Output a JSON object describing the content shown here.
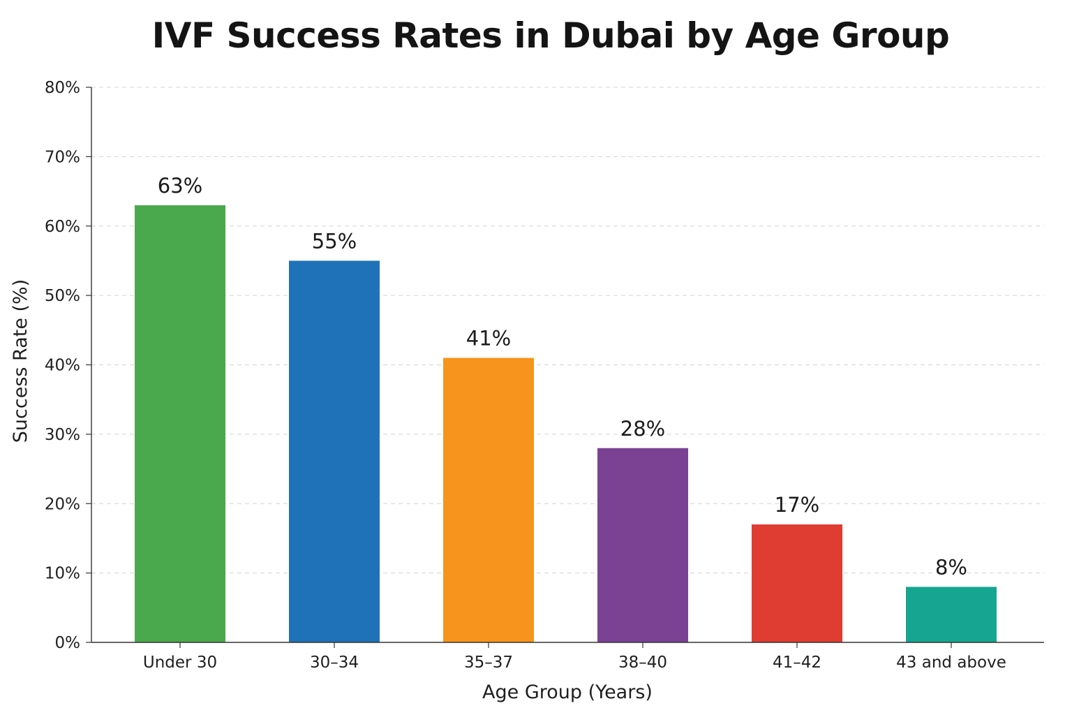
{
  "chart_data": {
    "type": "bar",
    "title": "IVF Success Rates in Dubai by Age Group",
    "xlabel": "Age Group (Years)",
    "ylabel": "Success Rate (%)",
    "categories": [
      "Under 30",
      "30–34",
      "35–37",
      "38–40",
      "41–42",
      "43 and above"
    ],
    "values": [
      63,
      55,
      41,
      28,
      17,
      8
    ],
    "value_labels": [
      "63%",
      "55%",
      "41%",
      "28%",
      "17%",
      "8%"
    ],
    "colors": [
      "#4aa84d",
      "#1f72b8",
      "#f7941d",
      "#7b4294",
      "#df3c32",
      "#16a590"
    ],
    "ylim": [
      0,
      80
    ],
    "yticks": [
      0,
      10,
      20,
      30,
      40,
      50,
      60,
      70,
      80
    ],
    "ytick_labels": [
      "0%",
      "10%",
      "20%",
      "30%",
      "40%",
      "50%",
      "60%",
      "70%",
      "80%"
    ],
    "grid": true,
    "legend": "none"
  }
}
